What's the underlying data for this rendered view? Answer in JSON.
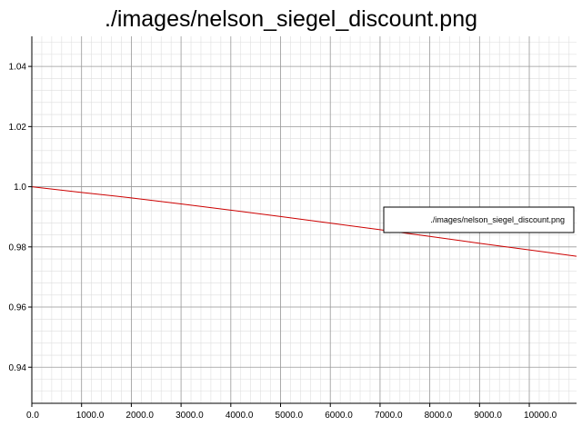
{
  "chart_data": {
    "type": "line",
    "title": "./images/nelson_siegel_discount.png",
    "xlabel": "",
    "ylabel": "",
    "xlim": [
      0,
      10950
    ],
    "ylim": [
      0.928,
      1.05
    ],
    "x_ticks": [
      0,
      1000,
      2000,
      3000,
      4000,
      5000,
      6000,
      7000,
      8000,
      9000,
      10000
    ],
    "x_tick_labels": [
      "0.0",
      "1000.0",
      "2000.0",
      "3000.0",
      "4000.0",
      "5000.0",
      "6000.0",
      "7000.0",
      "8000.0",
      "9000.0",
      "10000.0"
    ],
    "y_ticks": [
      0.94,
      0.96,
      0.98,
      1.0,
      1.02,
      1.04
    ],
    "y_tick_labels": [
      "0.94",
      "0.96",
      "0.98",
      "1.0",
      "1.02",
      "1.04"
    ],
    "grid": true,
    "legend_position": "right",
    "series": [
      {
        "name": "./images/nelson_siegel_discount.png",
        "color": "#cc0000",
        "x": [
          0,
          1000,
          2000,
          3000,
          4000,
          5000,
          6000,
          7000,
          8000,
          9000,
          10000,
          10950
        ],
        "y": [
          1.0,
          0.9981,
          0.9963,
          0.9943,
          0.9922,
          0.9901,
          0.9879,
          0.9857,
          0.9835,
          0.9812,
          0.979,
          0.9769
        ]
      }
    ]
  }
}
